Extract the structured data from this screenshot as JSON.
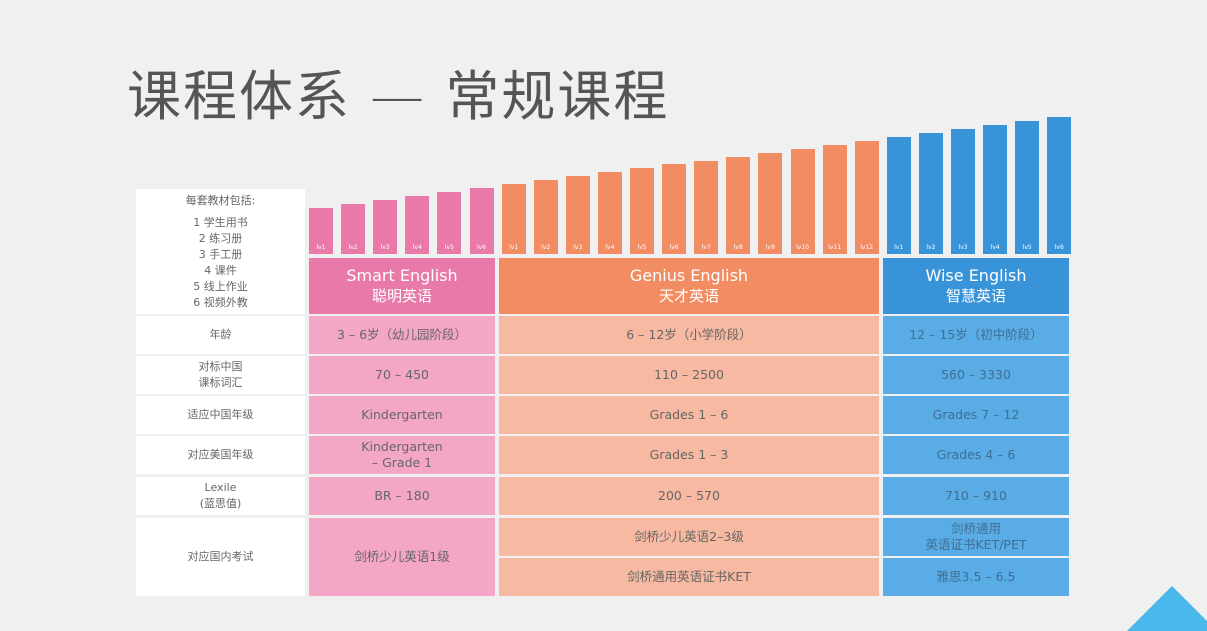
{
  "title": "课程体系 — 常规课程",
  "colors": {
    "smart": "#e879a8",
    "smart_light": "#f4a6c6",
    "genius": "#f28c63",
    "genius_light": "#f7b9a2",
    "wise": "#3993d8",
    "wise_light": "#5aace6"
  },
  "includes": {
    "title": "每套教材包括:",
    "items": [
      "1 学生用书",
      "2 练习册",
      "3 手工册",
      "4 课件",
      "5 线上作业",
      "6 视频外教"
    ]
  },
  "programs": [
    {
      "key": "smart",
      "name": "Smart English",
      "name_zh": "聪明英语",
      "levels": [
        "lv1",
        "lv2",
        "lv3",
        "lv4",
        "lv5",
        "lv6"
      ]
    },
    {
      "key": "genius",
      "name": "Genius English",
      "name_zh": "天才英语",
      "levels": [
        "lv1",
        "lv2",
        "lv3",
        "lv4",
        "lv5",
        "lv6",
        "lv7",
        "lv8",
        "lv9",
        "lv10",
        "lv11",
        "lv12"
      ]
    },
    {
      "key": "wise",
      "name": "Wise English",
      "name_zh": "智慧英语",
      "levels": [
        "lv1",
        "lv2",
        "lv3",
        "lv4",
        "lv5",
        "lv6"
      ]
    }
  ],
  "rows": [
    {
      "label": "年龄",
      "cells": [
        "3 – 6岁（幼儿园阶段）",
        "6 – 12岁（小学阶段）",
        "12 – 15岁（初中阶段）"
      ]
    },
    {
      "label": "对标中国\n课标词汇",
      "cells": [
        "70 – 450",
        "110 – 2500",
        "560 – 3330"
      ]
    },
    {
      "label": "适应中国年级",
      "cells": [
        "Kindergarten",
        "Grades 1 – 6",
        "Grades 7 – 12"
      ]
    },
    {
      "label": "对应美国年级",
      "cells": [
        "Kindergarten\n– Grade 1",
        "Grades 1 – 3",
        "Grades 4 – 6"
      ]
    },
    {
      "label": "Lexile\n(蓝思值)",
      "cells": [
        "BR – 180",
        "200 – 570",
        "710 – 910"
      ]
    }
  ],
  "exam": {
    "label": "对应国内考试",
    "smart": "剑桥少儿英语1级",
    "genius": [
      "剑桥少儿英语2–3级",
      "剑桥通用英语证书KET"
    ],
    "wise": [
      "剑桥通用\n英语证书KET/PET",
      "雅思3.5 – 6.5"
    ]
  }
}
